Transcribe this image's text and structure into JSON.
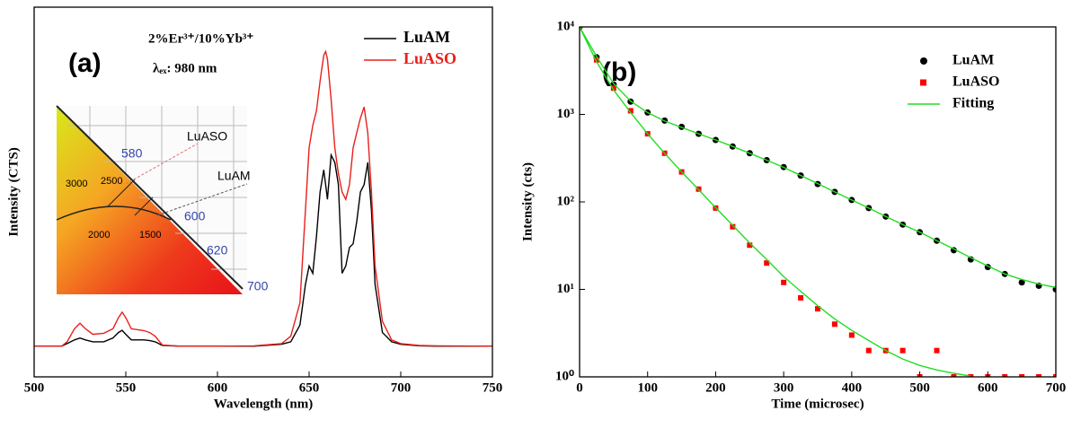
{
  "chart_data": [
    {
      "type": "line",
      "panel_label": "(a)",
      "annotations": [
        "2%Er³⁺/10%Yb³⁺",
        "λₑₓ: 980 nm"
      ],
      "xlabel": "Wavelength (nm)",
      "ylabel": "Intensity (CTS)",
      "xlim": [
        500,
        750
      ],
      "xticks": [
        500,
        550,
        600,
        650,
        700,
        750
      ],
      "ylim": [
        0,
        100
      ],
      "legend": "upper right",
      "legend_text_colored": true,
      "x": [
        500,
        515,
        518,
        522,
        525,
        528,
        532,
        538,
        543,
        546,
        548,
        550,
        553,
        556,
        560,
        563,
        566,
        570,
        580,
        600,
        620,
        635,
        640,
        645,
        648,
        650,
        652,
        654,
        656,
        658,
        659,
        660,
        662,
        664,
        666,
        668,
        670,
        672,
        674,
        676,
        678,
        680,
        682,
        684,
        686,
        690,
        695,
        700,
        710,
        720,
        750
      ],
      "series": [
        {
          "name": "LuAM",
          "color": "#000000",
          "values": [
            8.3,
            8.3,
            9,
            10,
            10.5,
            10,
            9.5,
            9.5,
            10.5,
            12,
            12.6,
            11.5,
            10,
            10,
            10,
            9.8,
            9.5,
            8.5,
            8.3,
            8.3,
            8.3,
            8.8,
            9.5,
            14,
            25,
            30,
            28,
            38,
            50,
            56,
            52,
            48,
            60,
            58,
            52,
            28,
            30,
            35,
            36,
            42,
            50,
            52,
            58,
            45,
            25,
            12,
            9.5,
            8.8,
            8.4,
            8.3,
            8.3
          ]
        },
        {
          "name": "LuASO",
          "color": "#e8201c",
          "values": [
            8.3,
            8.3,
            9.5,
            13,
            14.5,
            13,
            11.5,
            11.8,
            13,
            16,
            17.5,
            16,
            13,
            12.8,
            12.5,
            12,
            11,
            8.6,
            8.3,
            8.3,
            8.4,
            9,
            11,
            20,
            45,
            62,
            68,
            72,
            80,
            87,
            88,
            86,
            75,
            62,
            55,
            50,
            48,
            52,
            62,
            66,
            70,
            73,
            66,
            50,
            30,
            15,
            10,
            9,
            8.5,
            8.4,
            8.3
          ]
        }
      ],
      "inset_labels": [
        "LuASO",
        "580",
        "LuAM",
        "3000",
        "2500",
        "600",
        "2000",
        "1500",
        "620",
        "700"
      ]
    },
    {
      "type": "scatter",
      "panel_label": "(b)",
      "xlabel": "Time (microsec)",
      "ylabel": "Intensity (cts)",
      "xlim": [
        0,
        700
      ],
      "xticks": [
        0,
        100,
        200,
        300,
        400,
        500,
        600,
        700
      ],
      "ylim": [
        1,
        10000
      ],
      "log_y": true,
      "yticks": [
        {
          "value": 1,
          "label": "10⁰"
        },
        {
          "value": 10,
          "label": "10¹"
        },
        {
          "value": 100,
          "label": "10²"
        },
        {
          "value": 1000,
          "label": "10³"
        },
        {
          "value": 10000,
          "label": "10⁴"
        }
      ],
      "legend": "upper right",
      "series": [
        {
          "name": "LuAM",
          "color": "#000000",
          "marker": "circle",
          "x": [
            0,
            25,
            50,
            75,
            100,
            125,
            150,
            175,
            200,
            225,
            250,
            275,
            300,
            325,
            350,
            375,
            400,
            425,
            450,
            475,
            500,
            525,
            550,
            575,
            600,
            625,
            650,
            675,
            700
          ],
          "values": [
            10000,
            4500,
            2200,
            1400,
            1050,
            850,
            720,
            600,
            510,
            430,
            360,
            300,
            250,
            200,
            160,
            130,
            105,
            85,
            68,
            55,
            45,
            36,
            28,
            22,
            18,
            15,
            12,
            11,
            10
          ]
        },
        {
          "name": "LuASO",
          "color": "#ff0000",
          "marker": "square",
          "x": [
            0,
            25,
            50,
            75,
            100,
            125,
            150,
            175,
            200,
            225,
            250,
            275,
            300,
            325,
            350,
            375,
            400,
            425,
            450,
            475,
            500,
            525,
            550,
            575,
            600,
            625,
            650,
            675,
            700
          ],
          "values": [
            10000,
            4200,
            2000,
            1100,
            600,
            360,
            220,
            140,
            85,
            52,
            32,
            20,
            12,
            8,
            6,
            4,
            3,
            2,
            2,
            2,
            1,
            2,
            1,
            1,
            1,
            1,
            1,
            1,
            1
          ]
        },
        {
          "name": "Fitting",
          "color": "#22dd22",
          "type": "line",
          "x": [
            0,
            25,
            50,
            75,
            100,
            125,
            150,
            175,
            200,
            225,
            250,
            275,
            300,
            325,
            350,
            375,
            400,
            425,
            450,
            475,
            500,
            525,
            550,
            575,
            600,
            625,
            650,
            675,
            700,
            null,
            0,
            25,
            50,
            75,
            100,
            125,
            150,
            175,
            200,
            225,
            250,
            275,
            300,
            325,
            350,
            375,
            400,
            425,
            450,
            475,
            500,
            525,
            550,
            575
          ],
          "values": [
            10000,
            4600,
            2250,
            1420,
            1050,
            840,
            710,
            600,
            510,
            430,
            360,
            300,
            248,
            200,
            162,
            130,
            105,
            85,
            68,
            55,
            45,
            36,
            29,
            23,
            18.5,
            15,
            13,
            11.5,
            10.5,
            null,
            10000,
            4000,
            1900,
            1050,
            600,
            360,
            220,
            138,
            86,
            54,
            34,
            22,
            14,
            9.5,
            6.5,
            4.6,
            3.4,
            2.6,
            2,
            1.6,
            1.35,
            1.2,
            1.1,
            1.02
          ]
        }
      ]
    }
  ]
}
